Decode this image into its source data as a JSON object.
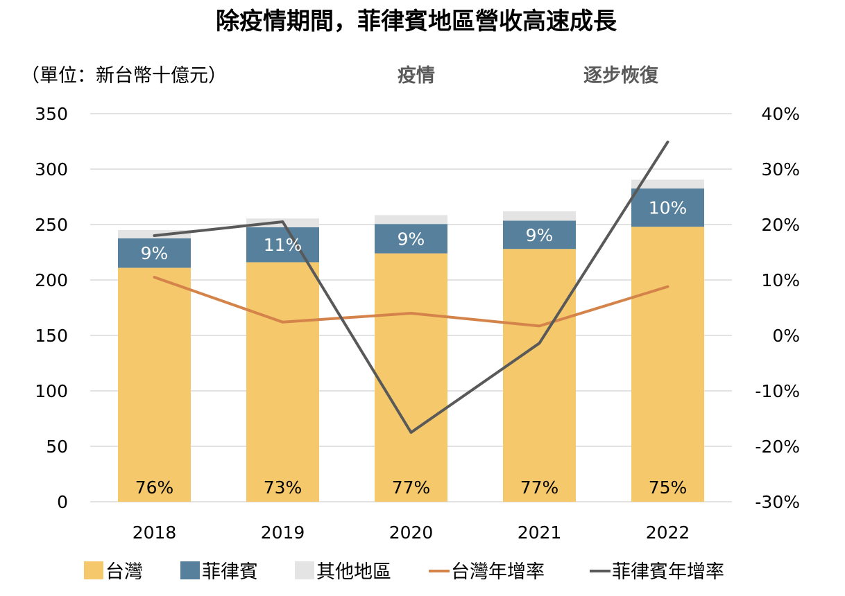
{
  "chart_data": {
    "type": "bar",
    "subtype": "stacked-bar-with-lines-dual-axis",
    "title": "除疫情期間，菲律賓地區營收高速成長",
    "unit_label": "（單位：新台幣十億元）",
    "annotations": [
      "疫情",
      "逐步恢復"
    ],
    "categories": [
      "2018",
      "2019",
      "2020",
      "2021",
      "2022"
    ],
    "left_axis": {
      "ylim": [
        0,
        350
      ],
      "ticks": [
        "0",
        "50",
        "100",
        "150",
        "200",
        "250",
        "300",
        "350"
      ],
      "tick_values": [
        0,
        50,
        100,
        150,
        200,
        250,
        300,
        350
      ]
    },
    "right_axis": {
      "ylim": [
        -30,
        40
      ],
      "ticks": [
        "-30%",
        "-20%",
        "-10%",
        "0%",
        "10%",
        "20%",
        "30%",
        "40%"
      ],
      "tick_values": [
        -30,
        -20,
        -10,
        0,
        10,
        20,
        30,
        40
      ]
    },
    "grid": true,
    "legend_position": "bottom",
    "series": [
      {
        "name": "台灣",
        "type": "bar",
        "axis": "left",
        "color": "#F5C96B",
        "values": [
          211,
          216,
          224,
          228,
          248
        ],
        "labels": [
          "76%",
          "73%",
          "77%",
          "77%",
          "75%"
        ]
      },
      {
        "name": "菲律賓",
        "type": "bar",
        "axis": "left",
        "color": "#56809B",
        "values": [
          26.5,
          31.5,
          26.5,
          25.5,
          34.5
        ],
        "labels": [
          "9%",
          "11%",
          "9%",
          "9%",
          "10%"
        ]
      },
      {
        "name": "其他地區",
        "type": "bar",
        "axis": "left",
        "color": "#E4E4E4",
        "values": [
          7.5,
          8,
          8,
          8.5,
          8
        ]
      },
      {
        "name": "台灣年增率",
        "type": "line",
        "axis": "right",
        "color": "#D4844A",
        "values": [
          10.5,
          2.4,
          4.0,
          1.7,
          8.8
        ]
      },
      {
        "name": "菲律賓年增率",
        "type": "line",
        "axis": "right",
        "color": "#595959",
        "values": [
          18.0,
          20.5,
          -17.5,
          -1.4,
          34.9
        ]
      }
    ]
  }
}
